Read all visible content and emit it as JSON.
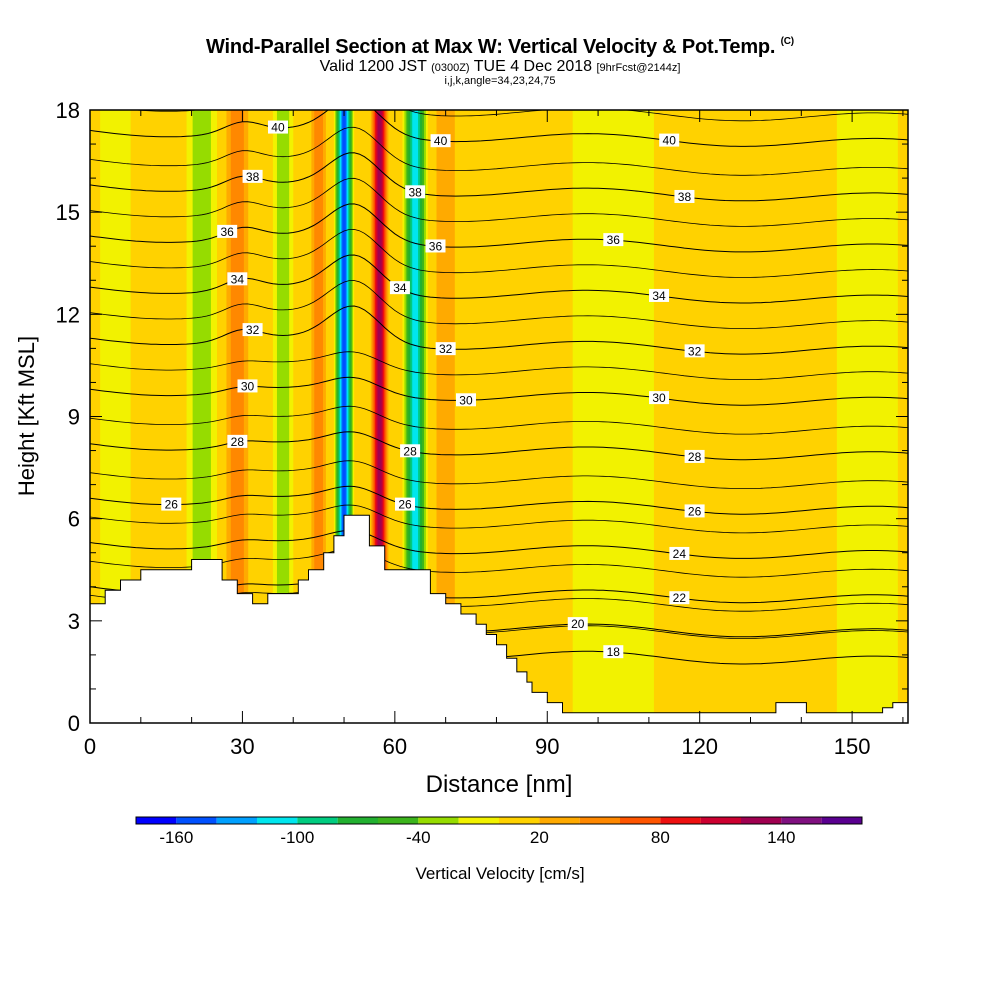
{
  "title": {
    "main": "Wind-Parallel Section at Max W: Vertical Velocity & Pot.Temp.",
    "copyright": "(C)",
    "valid_prefix": "Valid 1200 JST",
    "utc": "(0300Z)",
    "date": "TUE 4 Dec 2018",
    "forecast": "[9hrFcst@2144z]",
    "indices": "i,j,k,angle=34,23,24,75"
  },
  "chart_data": {
    "type": "heatmap",
    "xlabel": "Distance [nm]",
    "ylabel": "Height [Kft MSL]",
    "xlim": [
      0,
      161
    ],
    "ylim": [
      0,
      18
    ],
    "xticks": [
      0,
      30,
      60,
      90,
      120,
      150
    ],
    "yticks": [
      0,
      3,
      6,
      9,
      12,
      15,
      18
    ],
    "colorbar": {
      "label": "Vertical Velocity [cm/s]",
      "tick_labels": [
        "-160",
        "-100",
        "-40",
        "20",
        "80",
        "140"
      ],
      "tick_values": [
        -160,
        -100,
        -40,
        20,
        80,
        140
      ],
      "range": [
        -180,
        180
      ],
      "step": 20,
      "colors": [
        "#0000ff",
        "#0050ff",
        "#00a0ff",
        "#00e6ee",
        "#00cc80",
        "#22b030",
        "#3cb41c",
        "#96dc00",
        "#f2f200",
        "#ffd200",
        "#ffaa00",
        "#ff8800",
        "#ff5500",
        "#ee1010",
        "#cc0030",
        "#a00050",
        "#801080",
        "#5a0090"
      ]
    },
    "velocity_bands": [
      {
        "x": 5,
        "w": 6,
        "v": -20
      },
      {
        "x": 22,
        "w": 6,
        "v": -30
      },
      {
        "x": 29,
        "w": 6,
        "v": 50
      },
      {
        "x": 38,
        "w": 4,
        "v": -40
      },
      {
        "x": 45,
        "w": 4,
        "v": 50
      },
      {
        "x": 50,
        "w": 4,
        "v": -150
      },
      {
        "x": 57,
        "w": 4,
        "v": 135
      },
      {
        "x": 64,
        "w": 5,
        "v": -110
      },
      {
        "x": 70,
        "w": 6,
        "v": 30
      },
      {
        "x": 103,
        "w": 16,
        "v": -10
      },
      {
        "x": 153,
        "w": 12,
        "v": -10
      }
    ],
    "terrain": [
      [
        0,
        3.5
      ],
      [
        3,
        3.5
      ],
      [
        3,
        3.9
      ],
      [
        6,
        3.9
      ],
      [
        6,
        4.2
      ],
      [
        10,
        4.2
      ],
      [
        10,
        4.5
      ],
      [
        20,
        4.5
      ],
      [
        20,
        4.8
      ],
      [
        26,
        4.8
      ],
      [
        26,
        4.2
      ],
      [
        29,
        4.2
      ],
      [
        29,
        3.8
      ],
      [
        32,
        3.8
      ],
      [
        32,
        3.5
      ],
      [
        35,
        3.5
      ],
      [
        35,
        3.8
      ],
      [
        41,
        3.8
      ],
      [
        41,
        4.2
      ],
      [
        43,
        4.2
      ],
      [
        43,
        4.5
      ],
      [
        46,
        4.5
      ],
      [
        46,
        5.0
      ],
      [
        48,
        5.0
      ],
      [
        48,
        5.5
      ],
      [
        50,
        5.5
      ],
      [
        50,
        6.1
      ],
      [
        55,
        6.1
      ],
      [
        55,
        5.2
      ],
      [
        58,
        5.2
      ],
      [
        58,
        4.5
      ],
      [
        67,
        4.5
      ],
      [
        67,
        3.8
      ],
      [
        70,
        3.8
      ],
      [
        70,
        3.5
      ],
      [
        73,
        3.5
      ],
      [
        73,
        3.2
      ],
      [
        76,
        3.2
      ],
      [
        76,
        2.9
      ],
      [
        78,
        2.9
      ],
      [
        78,
        2.6
      ],
      [
        80,
        2.6
      ],
      [
        80,
        2.3
      ],
      [
        82,
        2.3
      ],
      [
        82,
        1.9
      ],
      [
        84,
        1.9
      ],
      [
        84,
        1.5
      ],
      [
        86,
        1.5
      ],
      [
        86,
        1.2
      ],
      [
        87,
        1.2
      ],
      [
        87,
        0.9
      ],
      [
        90,
        0.9
      ],
      [
        90,
        0.6
      ],
      [
        93,
        0.6
      ],
      [
        93,
        0.3
      ],
      [
        135,
        0.3
      ],
      [
        135,
        0.6
      ],
      [
        141,
        0.6
      ],
      [
        141,
        0.3
      ],
      [
        156,
        0.3
      ],
      [
        156,
        0.45
      ],
      [
        158,
        0.45
      ],
      [
        158,
        0.6
      ],
      [
        161,
        0.6
      ],
      [
        161,
        0
      ],
      [
        0,
        0
      ]
    ],
    "isentropes": [
      {
        "theta": 40,
        "y": 17.4,
        "label": "40",
        "label_xs": [
          37,
          69,
          114
        ]
      },
      {
        "theta": 38,
        "y": 15.8,
        "label": "38",
        "label_xs": [
          32,
          64,
          117
        ]
      },
      {
        "theta": 36,
        "y": 14.3,
        "label": "36",
        "label_xs": [
          27,
          68,
          103
        ]
      },
      {
        "theta": 34,
        "y": 12.8,
        "label": "34",
        "label_xs": [
          29,
          61,
          112
        ]
      },
      {
        "theta": 32,
        "y": 11.3,
        "label": "32",
        "label_xs": [
          32,
          70,
          119
        ]
      },
      {
        "theta": 30,
        "y": 9.8,
        "label": "30",
        "label_xs": [
          31,
          74,
          112
        ]
      },
      {
        "theta": 28,
        "y": 8.2,
        "label": "28",
        "label_xs": [
          29,
          63,
          119
        ]
      },
      {
        "theta": 26,
        "y": 6.6,
        "label": "26",
        "label_xs": [
          16,
          62,
          119
        ]
      },
      {
        "theta": 24,
        "y": 5.3,
        "label": "24",
        "label_xs": [
          116
        ]
      },
      {
        "theta": 22,
        "y": 4.0,
        "label": "22",
        "label_xs": [
          116
        ]
      },
      {
        "theta": 20,
        "y": 3.0,
        "label": "20",
        "label_xs": [
          96
        ]
      },
      {
        "theta": 18,
        "y": 2.2,
        "label": "18",
        "label_xs": [
          103
        ]
      }
    ]
  }
}
